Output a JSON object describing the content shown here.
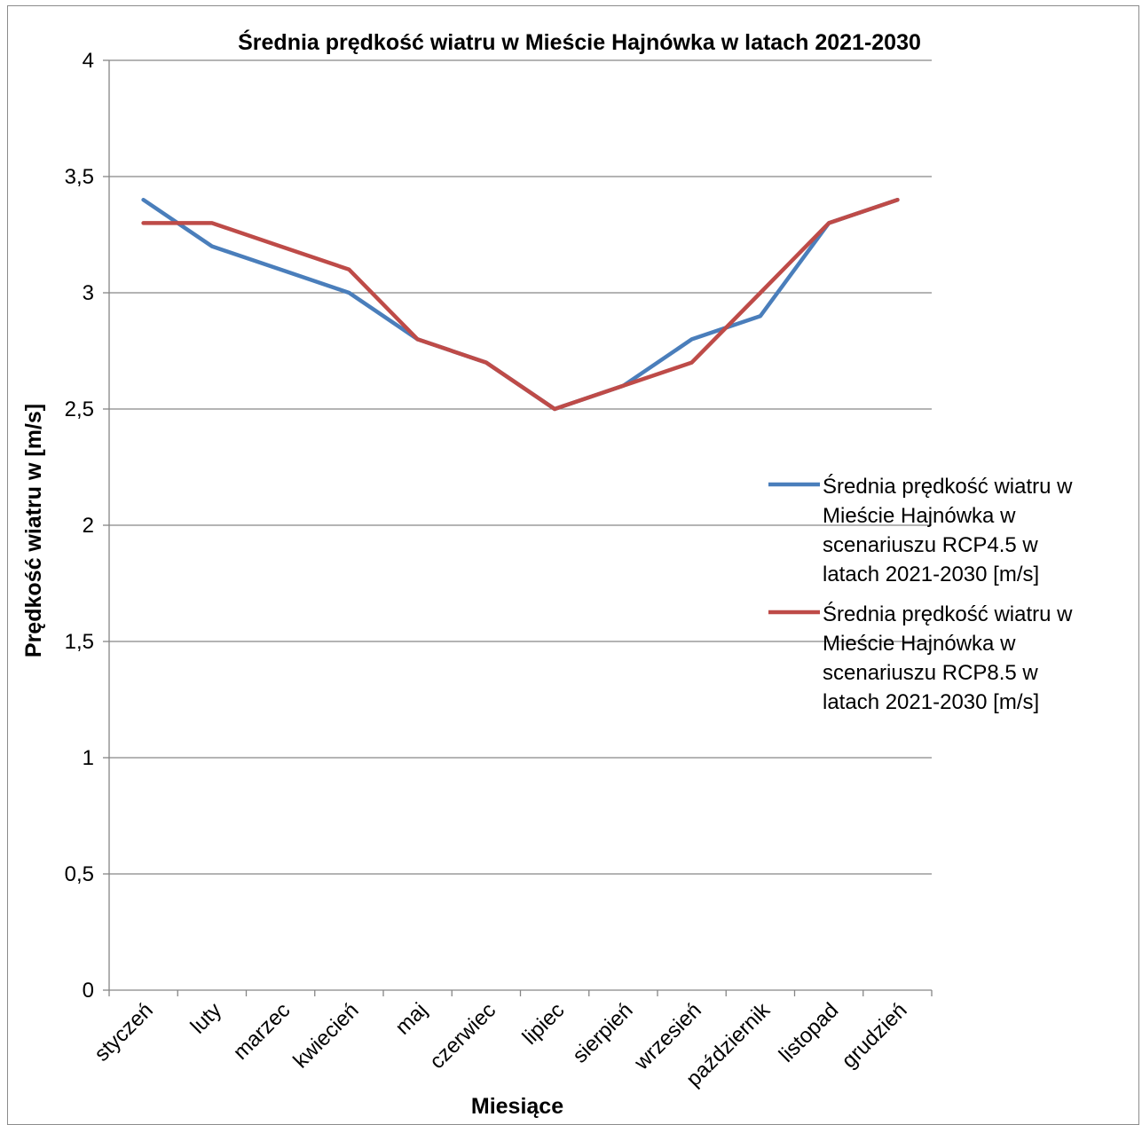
{
  "chart_data": {
    "type": "line",
    "title": "Średnia prędkość wiatru w Mieście Hajnówka  w latach 2021-2030",
    "xlabel": "Miesiące",
    "ylabel": "Prędkość wiatru w  [m/s]",
    "ylim": [
      0,
      4
    ],
    "y_ticks": [
      {
        "value": 0,
        "label": "0"
      },
      {
        "value": 0.5,
        "label": "0,5"
      },
      {
        "value": 1,
        "label": "1"
      },
      {
        "value": 1.5,
        "label": "1,5"
      },
      {
        "value": 2,
        "label": "2"
      },
      {
        "value": 2.5,
        "label": "2,5"
      },
      {
        "value": 3,
        "label": "3"
      },
      {
        "value": 3.5,
        "label": "3,5"
      },
      {
        "value": 4,
        "label": "4"
      }
    ],
    "categories": [
      "styczeń",
      "luty",
      "marzec",
      "kwiecień",
      "maj",
      "czerwiec",
      "lipiec",
      "sierpień",
      "wrzesień",
      "październik",
      "listopad",
      "grudzień"
    ],
    "grid": true,
    "legend_position": "right",
    "series": [
      {
        "name": "Średnia prędkość wiatru w Mieście Hajnówka w scenariuszu RCP4.5 w latach 2021-2030 [m/s]",
        "legend_lines": [
          "Średnia prędkość wiatru w",
          "Mieście Hajnówka w",
          "scenariuszu RCP4.5 w",
          "latach 2021-2030 [m/s]"
        ],
        "color": "#4a7ebb",
        "values": [
          3.4,
          3.2,
          3.1,
          3.0,
          2.8,
          2.7,
          2.5,
          2.6,
          2.8,
          2.9,
          3.3,
          3.4
        ]
      },
      {
        "name": "Średnia prędkość wiatru w Mieście Hajnówka w scenariuszu RCP8.5 w latach 2021-2030 [m/s]",
        "legend_lines": [
          "Średnia prędkość wiatru w",
          "Mieście Hajnówka w",
          "scenariuszu RCP8.5 w",
          "latach 2021-2030 [m/s]"
        ],
        "color": "#be4b48",
        "values": [
          3.3,
          3.3,
          3.2,
          3.1,
          2.8,
          2.7,
          2.5,
          2.6,
          2.7,
          3.0,
          3.3,
          3.4
        ]
      }
    ]
  }
}
